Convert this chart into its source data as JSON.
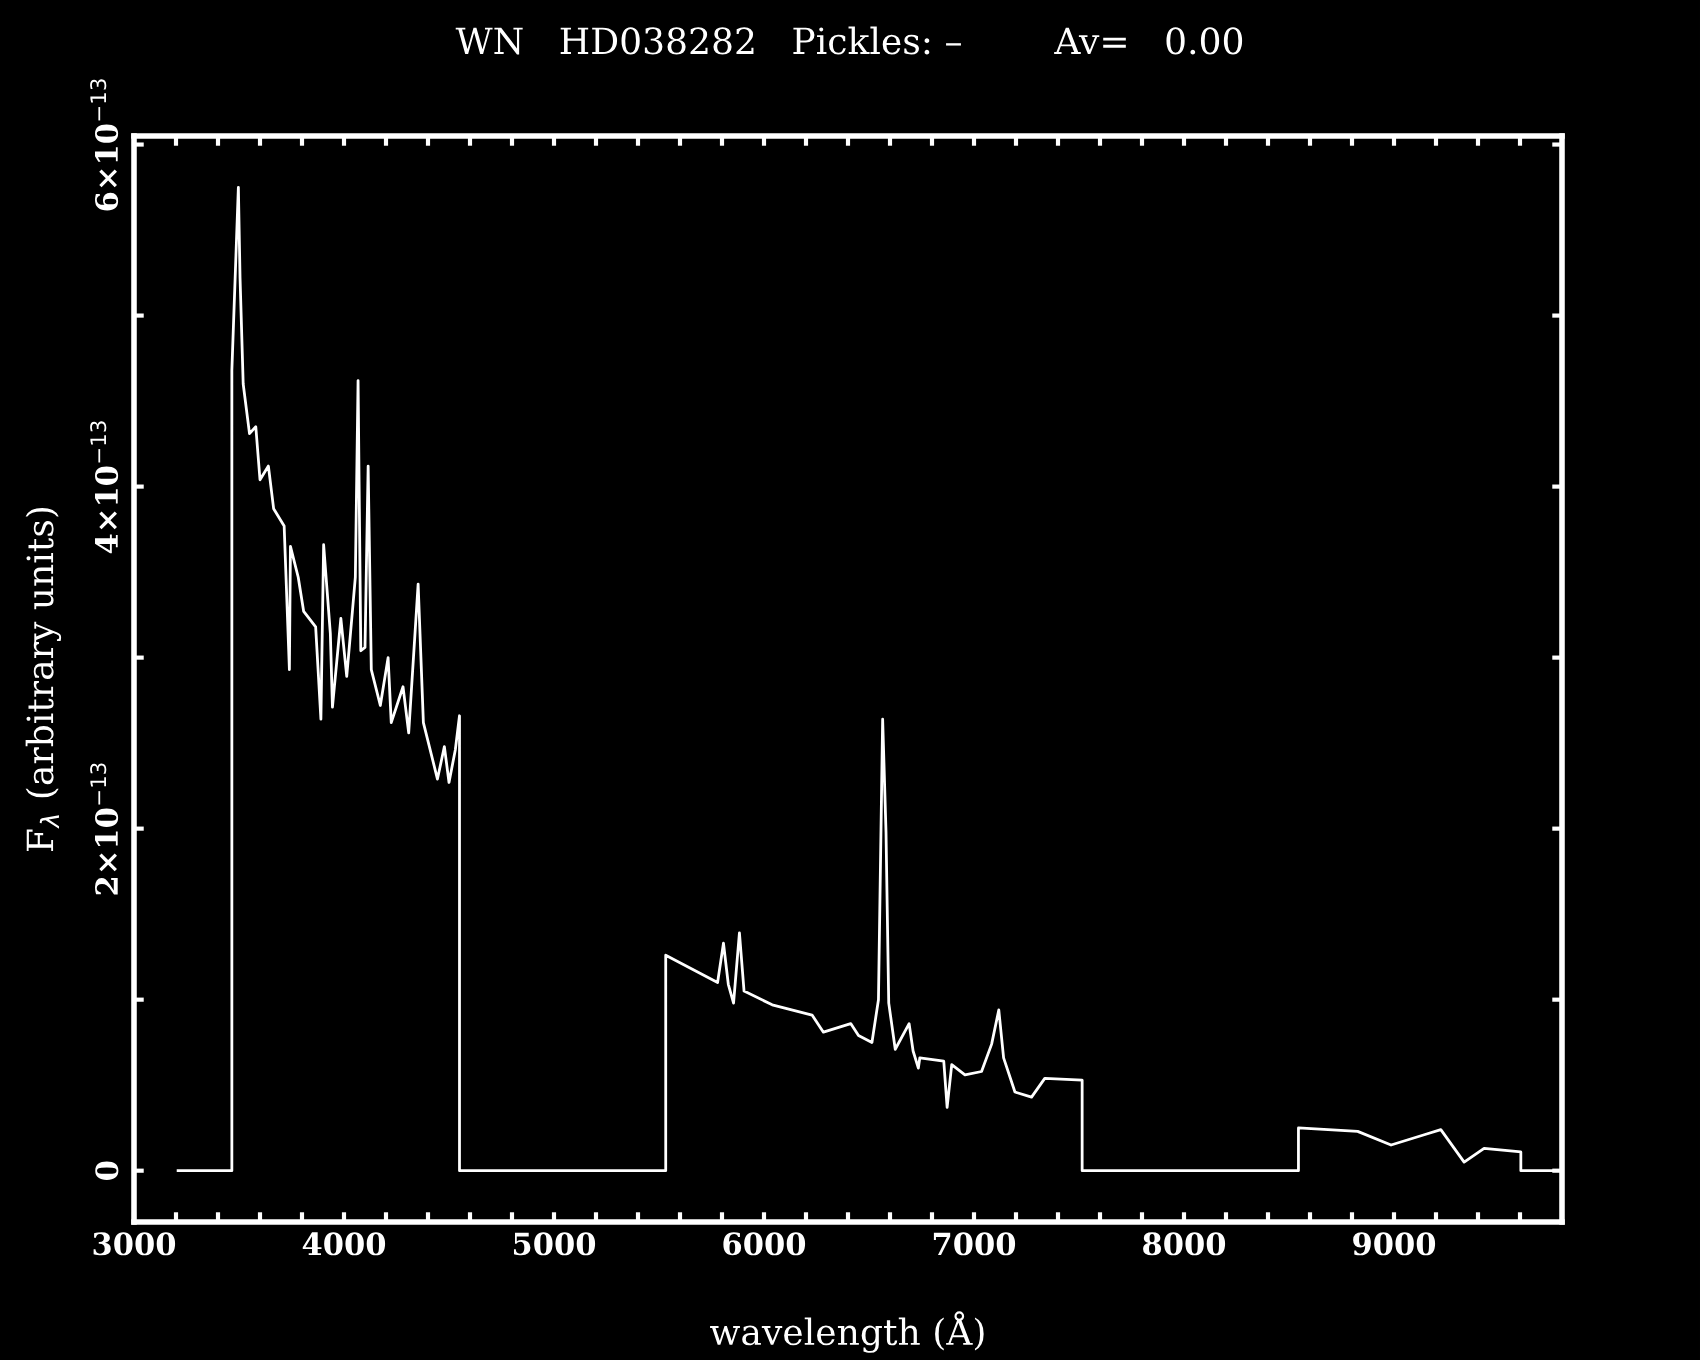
{
  "chart_data": {
    "type": "line",
    "title": "WN   HD038282   Pickles: –        Av=   0.00",
    "xlabel": "wavelength (Å)",
    "ylabel": "F$_{λ}$ (arbitrary units)",
    "series": [
      {
        "color": "#ffffff",
        "x": [
          3210,
          3466,
          3466,
          3497,
          3505,
          3520,
          3550,
          3580,
          3600,
          3640,
          3665,
          3715,
          3740,
          3745,
          3782,
          3808,
          3865,
          3890,
          3903,
          3935,
          3945,
          3985,
          4013,
          4040,
          4054,
          4067,
          4080,
          4100,
          4115,
          4130,
          4173,
          4210,
          4225,
          4281,
          4308,
          4353,
          4378,
          4445,
          4478,
          4500,
          4530,
          4550,
          4550,
          5532,
          5532,
          5779,
          5807,
          5830,
          5855,
          5883,
          5905,
          6039,
          6229,
          6283,
          6413,
          6450,
          6514,
          6545,
          6565,
          6581,
          6594,
          6625,
          6691,
          6710,
          6735,
          6742,
          6856,
          6872,
          6894,
          6957,
          7036,
          7084,
          7118,
          7141,
          7195,
          7274,
          7337,
          7515,
          7515,
          8545,
          8545,
          8827,
          8986,
          9144,
          9223,
          9334,
          9429,
          9604,
          9604,
          9776
        ],
        "values": [
          0,
          0,
          4.68e-13,
          5.75e-13,
          5.22e-13,
          4.6e-13,
          4.31e-13,
          4.35e-13,
          4.04e-13,
          4.12e-13,
          3.87e-13,
          3.77e-13,
          2.93e-13,
          3.65e-13,
          3.47e-13,
          3.27e-13,
          3.18e-13,
          2.64e-13,
          3.66e-13,
          3.14e-13,
          2.71e-13,
          3.23e-13,
          2.89e-13,
          3.27e-13,
          3.47e-13,
          4.62e-13,
          3.04e-13,
          3.06e-13,
          4.12e-13,
          2.93e-13,
          2.72e-13,
          3e-13,
          2.62e-13,
          2.83e-13,
          2.56e-13,
          3.43e-13,
          2.62e-13,
          2.29e-13,
          2.48e-13,
          2.27e-13,
          2.46e-13,
          2.66e-13,
          0,
          0,
          1.26e-13,
          1.1e-13,
          1.33e-13,
          1.09e-13,
          9.8e-14,
          1.39e-13,
          1.05e-13,
          9.7e-14,
          9.1e-14,
          8.1e-14,
          8.6e-14,
          7.9e-14,
          7.5e-14,
          1e-13,
          2.64e-13,
          1.98e-13,
          9.8e-14,
          7.1e-14,
          8.6e-14,
          7e-14,
          6e-14,
          6.6e-14,
          6.4e-14,
          3.7e-14,
          6.2e-14,
          5.6e-14,
          5.8e-14,
          7.4e-14,
          9.4e-14,
          6.6e-14,
          4.6e-14,
          4.3e-14,
          5.4e-14,
          5.3e-14,
          0,
          0,
          2.5e-14,
          2.3e-14,
          1.5e-14,
          2.1e-14,
          2.4e-14,
          5e-15,
          1.3e-14,
          1.1e-14,
          0,
          0
        ]
      }
    ],
    "xlim": [
      3000,
      9800
    ],
    "ylim": [
      -3e-14,
      6.05e-13
    ],
    "xticks": [
      3000,
      {
        "value": 3200,
        "label": null
      },
      {
        "value": 3400,
        "label": null
      },
      {
        "value": 3600,
        "label": null
      },
      {
        "value": 3800,
        "label": null
      },
      4000,
      {
        "value": 4200,
        "label": null
      },
      {
        "value": 4400,
        "label": null
      },
      {
        "value": 4600,
        "label": null
      },
      {
        "value": 4800,
        "label": null
      },
      5000,
      {
        "value": 5200,
        "label": null
      },
      {
        "value": 5400,
        "label": null
      },
      {
        "value": 5600,
        "label": null
      },
      {
        "value": 5800,
        "label": null
      },
      6000,
      {
        "value": 6200,
        "label": null
      },
      {
        "value": 6400,
        "label": null
      },
      {
        "value": 6600,
        "label": null
      },
      {
        "value": 6800,
        "label": null
      },
      7000,
      {
        "value": 7200,
        "label": null
      },
      {
        "value": 7400,
        "label": null
      },
      {
        "value": 7600,
        "label": null
      },
      {
        "value": 7800,
        "label": null
      },
      8000,
      {
        "value": 8200,
        "label": null
      },
      {
        "value": 8400,
        "label": null
      },
      {
        "value": 8600,
        "label": null
      },
      {
        "value": 8800,
        "label": null
      },
      9000,
      {
        "value": 9200,
        "label": null
      },
      {
        "value": 9400,
        "label": null
      },
      {
        "value": 9600,
        "label": null
      }
    ],
    "yticks": [
      0,
      {
        "value": 1e-13,
        "label": null
      },
      {
        "value": 2e-13,
        "label": "2×10$^{−13}$"
      },
      {
        "value": 3e-13,
        "label": null
      },
      {
        "value": 4e-13,
        "label": "4×10$^{−13}$"
      },
      {
        "value": 5e-13,
        "label": null
      },
      {
        "value": 6e-13,
        "label": "6×10$^{−13}$"
      }
    ],
    "grid": false,
    "marker": "none",
    "line_style": "solid"
  }
}
